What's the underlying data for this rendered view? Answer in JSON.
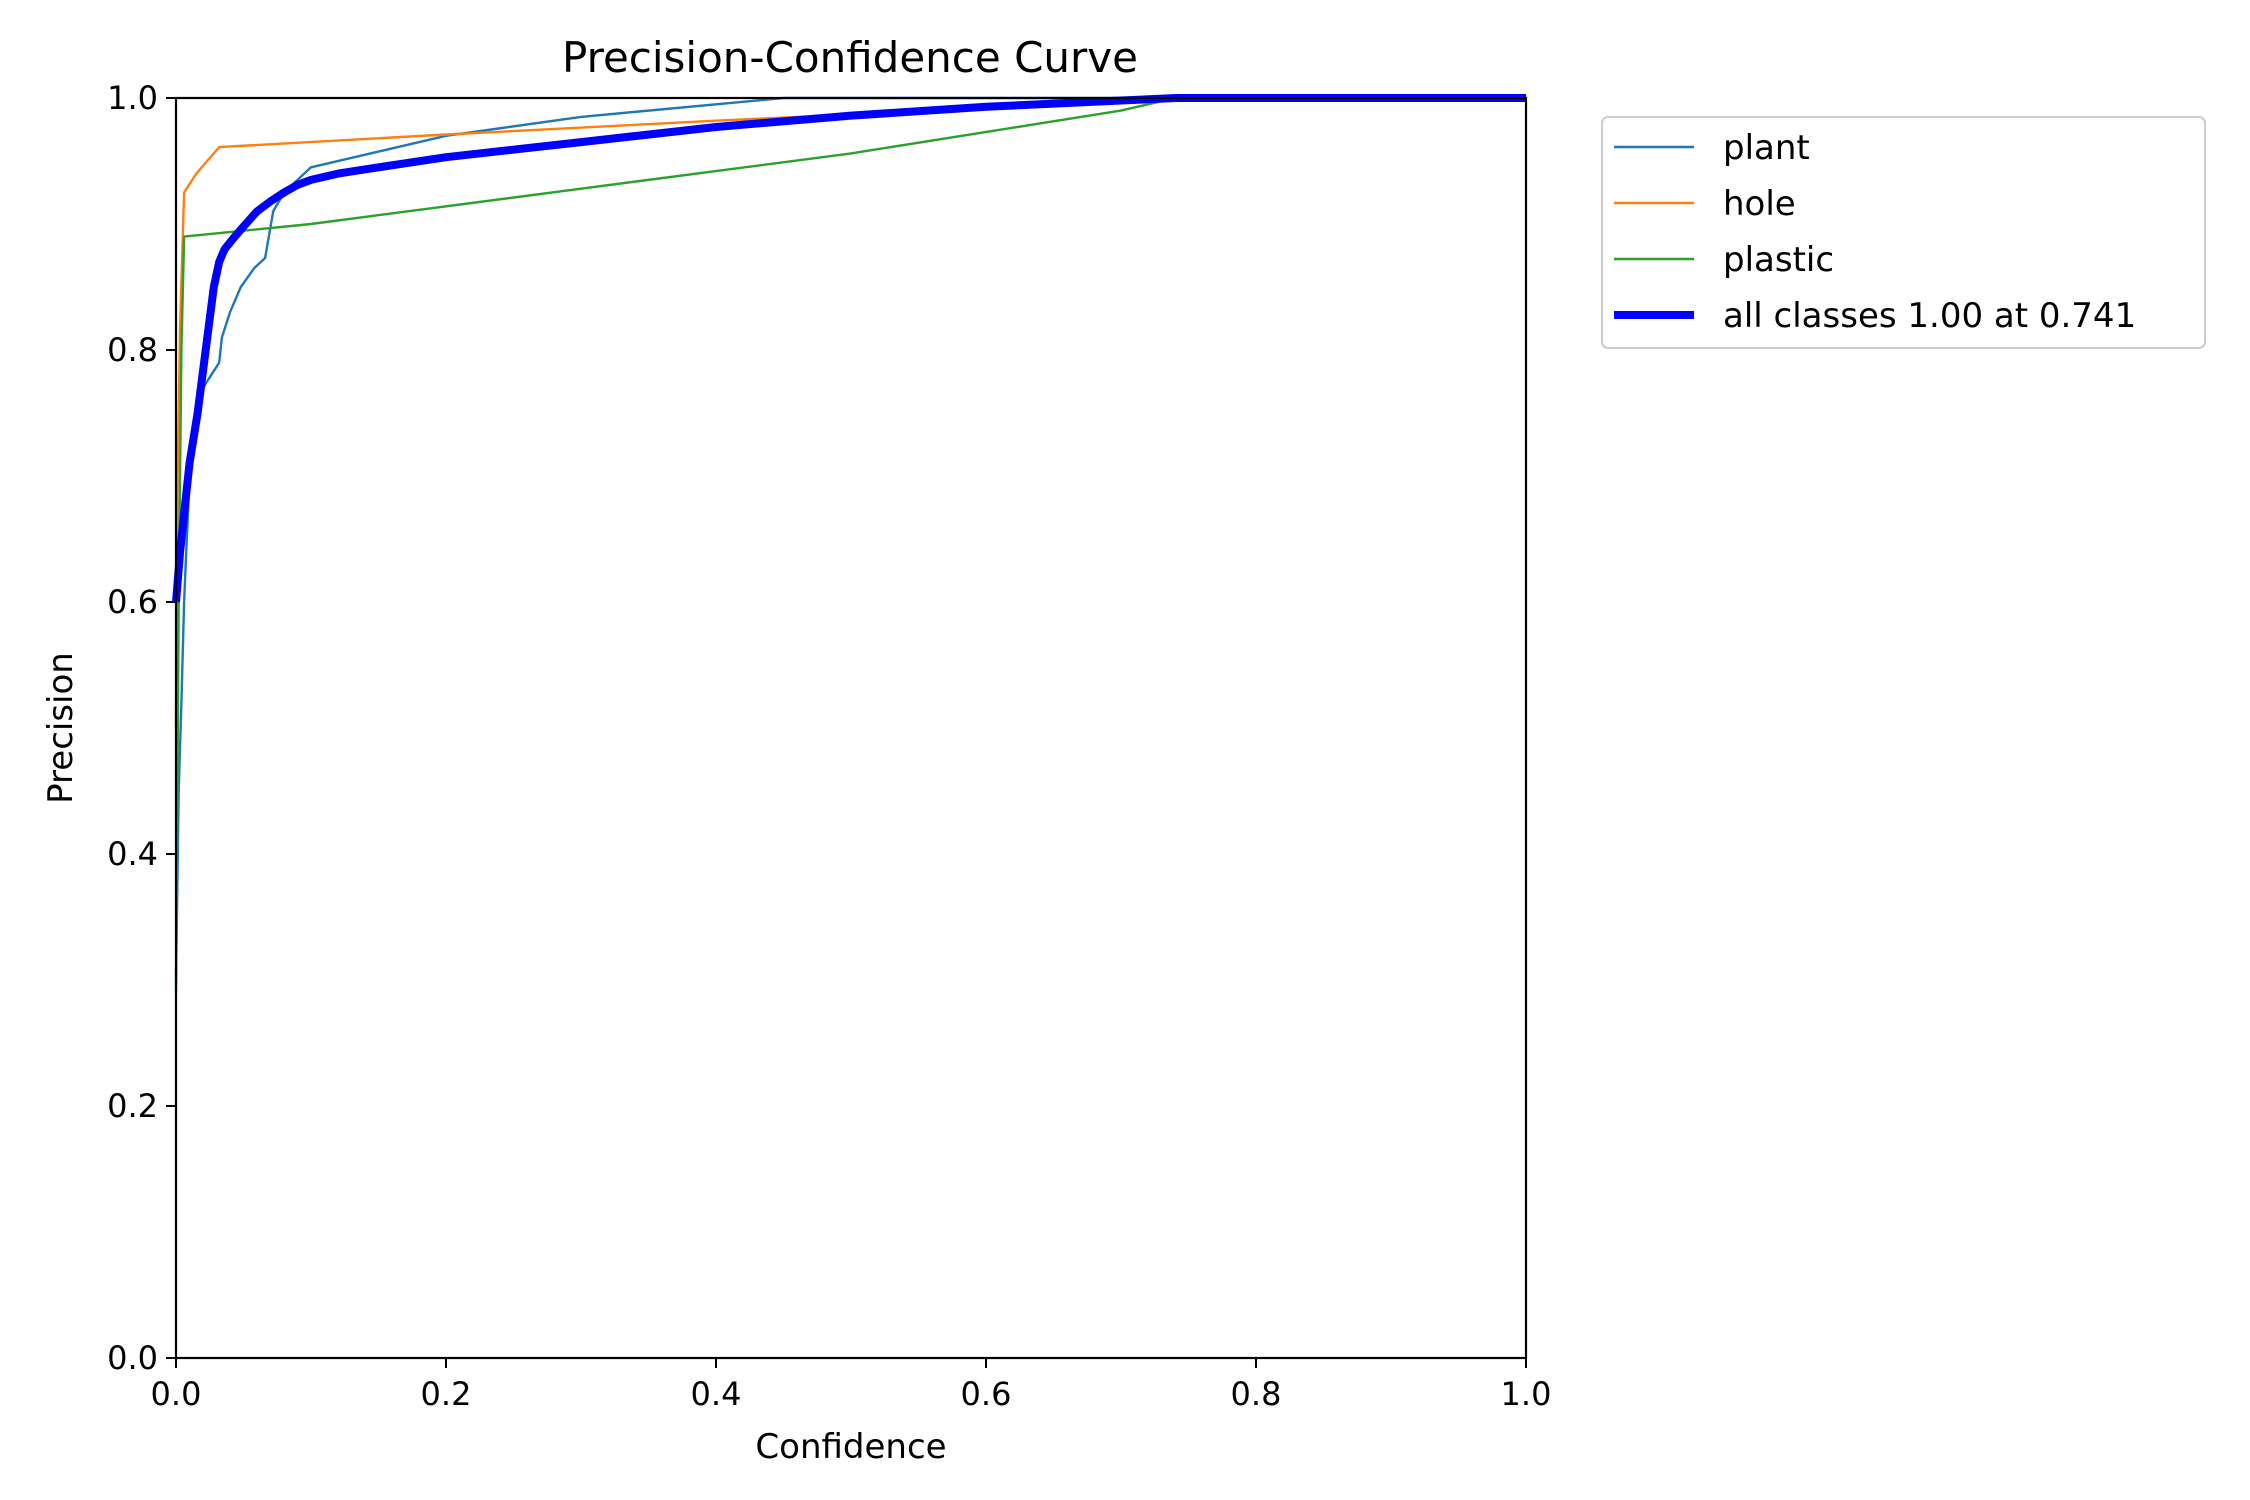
{
  "chart_data": {
    "type": "line",
    "title": "Precision-Confidence Curve",
    "xlabel": "Confidence",
    "ylabel": "Precision",
    "xlim": [
      0,
      1
    ],
    "ylim": [
      0,
      1
    ],
    "xticks": [
      "0.0",
      "0.2",
      "0.4",
      "0.6",
      "0.8",
      "1.0"
    ],
    "yticks": [
      "0.0",
      "0.2",
      "0.4",
      "0.6",
      "0.8",
      "1.0"
    ],
    "grid": false,
    "legend_position": "outside-top-right",
    "series": [
      {
        "name": "plant",
        "color": "#1f77b4",
        "x": [
          0.0,
          0.002,
          0.004,
          0.006,
          0.01,
          0.016,
          0.02,
          0.026,
          0.032,
          0.034,
          0.04,
          0.048,
          0.058,
          0.066,
          0.072,
          0.08,
          0.1,
          0.2,
          0.3,
          0.45,
          0.6,
          0.74,
          1.0
        ],
        "y": [
          0.3,
          0.45,
          0.52,
          0.6,
          0.7,
          0.74,
          0.77,
          0.78,
          0.79,
          0.81,
          0.83,
          0.85,
          0.865,
          0.873,
          0.91,
          0.925,
          0.945,
          0.97,
          0.985,
          1.0,
          1.0,
          1.0,
          1.0
        ]
      },
      {
        "name": "hole",
        "color": "#ff7f0e",
        "x": [
          0.0,
          0.001,
          0.003,
          0.006,
          0.015,
          0.032,
          0.2,
          0.4,
          0.6,
          0.74,
          1.0
        ],
        "y": [
          0.5,
          0.68,
          0.82,
          0.925,
          0.94,
          0.961,
          0.971,
          0.982,
          0.992,
          1.0,
          1.0
        ],
        "note": ""
      },
      {
        "name": "plastic",
        "color": "#2ca02c",
        "x": [
          0.0,
          0.002,
          0.004,
          0.006,
          0.1,
          0.3,
          0.5,
          0.7,
          0.74,
          1.0
        ],
        "y": [
          0.29,
          0.6,
          0.8,
          0.89,
          0.9,
          0.928,
          0.956,
          0.99,
          1.0,
          1.0
        ]
      },
      {
        "name": "all classes 1.00 at 0.741",
        "color": "#0000ff",
        "bold": true,
        "x": [
          0.0,
          0.003,
          0.006,
          0.01,
          0.016,
          0.022,
          0.028,
          0.032,
          0.036,
          0.042,
          0.05,
          0.06,
          0.07,
          0.08,
          0.09,
          0.1,
          0.12,
          0.15,
          0.2,
          0.3,
          0.4,
          0.5,
          0.6,
          0.7,
          0.741,
          1.0
        ],
        "y": [
          0.6,
          0.64,
          0.67,
          0.71,
          0.75,
          0.8,
          0.85,
          0.87,
          0.88,
          0.888,
          0.898,
          0.91,
          0.918,
          0.925,
          0.931,
          0.935,
          0.94,
          0.945,
          0.953,
          0.965,
          0.977,
          0.986,
          0.993,
          0.998,
          1.0,
          1.0
        ]
      }
    ]
  }
}
